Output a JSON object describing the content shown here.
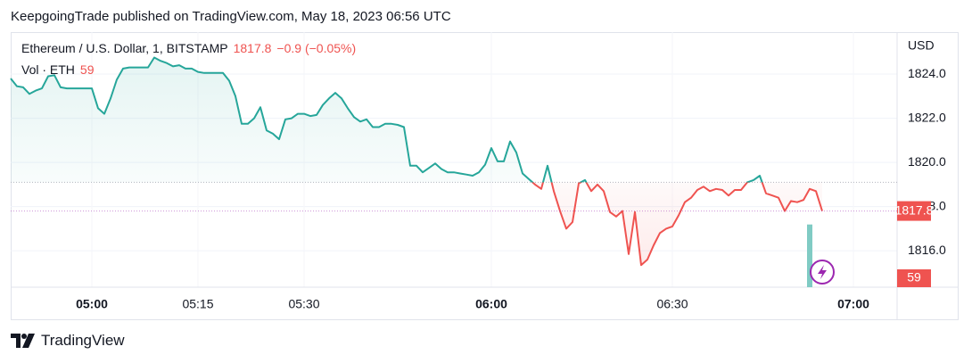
{
  "header": "KeepgoingTrade published on TradingView.com, May 18, 2023 06:56 UTC",
  "footer": "TradingView",
  "chart_data": {
    "type": "line",
    "title": "Ethereum / U.S. Dollar, 1, BITSTAMP",
    "change_label": "−0.9 (−0.05%)",
    "price_axis_label": "USD",
    "up_color": "#26a69a",
    "down_color": "#ef5350",
    "baseline": 1819.1,
    "values": [
      1823.8,
      1823.45,
      1823.4,
      1823.1,
      1823.25,
      1823.35,
      1823.9,
      1823.95,
      1823.4,
      1823.35,
      1823.35,
      1823.35,
      1823.35,
      1823.35,
      1822.45,
      1822.2,
      1822.9,
      1823.75,
      1824.25,
      1824.3,
      1824.3,
      1824.3,
      1824.3,
      1824.75,
      1824.6,
      1824.5,
      1824.35,
      1824.4,
      1824.25,
      1824.25,
      1824.1,
      1824.05,
      1824.05,
      1824.05,
      1824.05,
      1823.7,
      1823.0,
      1821.75,
      1821.75,
      1822.0,
      1822.5,
      1821.45,
      1821.3,
      1821.05,
      1821.95,
      1822.0,
      1822.2,
      1822.2,
      1822.1,
      1822.15,
      1822.6,
      1822.9,
      1823.15,
      1822.9,
      1822.45,
      1822.05,
      1821.85,
      1821.95,
      1821.6,
      1821.6,
      1821.75,
      1821.75,
      1821.7,
      1821.6,
      1819.85,
      1819.85,
      1819.55,
      1819.75,
      1819.95,
      1819.7,
      1819.55,
      1819.55,
      1819.5,
      1819.45,
      1819.4,
      1819.55,
      1819.9,
      1820.65,
      1820.05,
      1820.05,
      1820.95,
      1820.45,
      1819.5,
      1819.25,
      1819.0,
      1818.8,
      1819.85,
      1818.7,
      1817.8,
      1817.0,
      1817.3,
      1819.05,
      1819.2,
      1818.7,
      1819.0,
      1818.7,
      1817.75,
      1817.55,
      1817.8,
      1815.85,
      1817.75,
      1815.35,
      1815.6,
      1816.25,
      1816.8,
      1817.0,
      1817.1,
      1817.6,
      1818.2,
      1818.4,
      1818.75,
      1818.9,
      1818.7,
      1818.8,
      1818.75,
      1818.5,
      1818.75,
      1818.75,
      1819.1,
      1819.2,
      1819.4,
      1818.6,
      1818.5,
      1818.4,
      1817.8,
      1818.25,
      1818.2,
      1818.3,
      1818.8,
      1818.7,
      1817.8
    ],
    "xlim": [
      0,
      142
    ],
    "xticks": [
      {
        "value": 13,
        "label": "05:00"
      },
      {
        "value": 30,
        "label": "05:15"
      },
      {
        "value": 47,
        "label": "05:30"
      },
      {
        "value": 77,
        "label": "06:00"
      },
      {
        "value": 106,
        "label": "06:30"
      },
      {
        "value": 135,
        "label": "07:00"
      }
    ],
    "ylim": [
      1814.35,
      1825.9
    ],
    "yticks": [
      {
        "value": 1816,
        "label": "1816.0"
      },
      {
        "value": 1818,
        "label": "1818.0"
      },
      {
        "value": 1820,
        "label": "1820.0"
      },
      {
        "value": 1822,
        "label": "1822.0"
      },
      {
        "value": 1824,
        "label": "1824.0"
      }
    ],
    "volume": {
      "label": "Vol · ETH",
      "value": 59,
      "x": 128,
      "color": "#80cbc4",
      "ylim": [
        0,
        240
      ]
    }
  }
}
